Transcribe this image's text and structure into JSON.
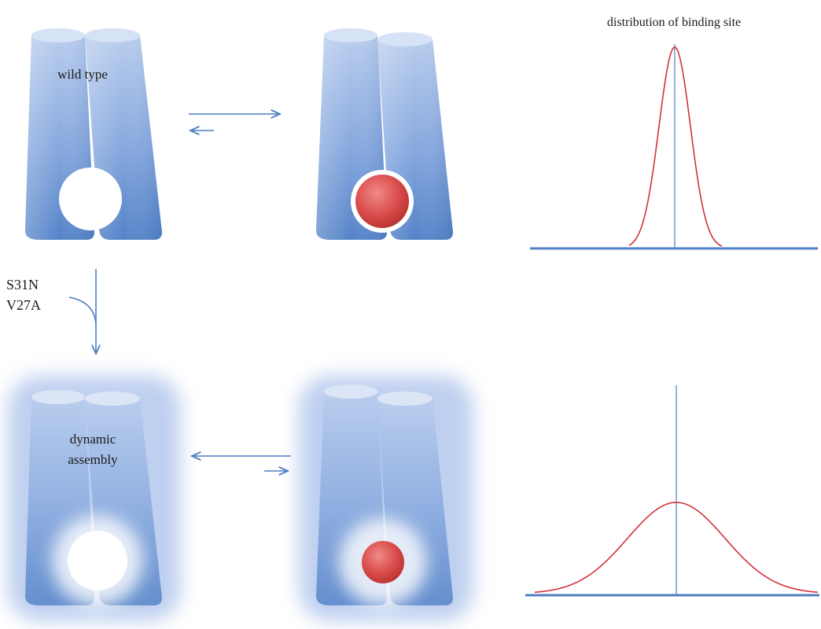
{
  "labels": {
    "wild_type": "wild type",
    "mutation_1": "S31N",
    "mutation_2": "V27A",
    "dynamic_line1": "dynamic",
    "dynamic_line2": "assembly",
    "distribution_title": "distribution of binding site"
  },
  "colors": {
    "channel": "#7b9fd8",
    "channel_dark": "#4a78c0",
    "arrow": "#4f7fc1",
    "curve": "#d0323a",
    "drug": "#d94b4b",
    "axis": "#4f7fc1"
  },
  "chart_data": [
    {
      "type": "line",
      "title": "distribution of binding site",
      "series": [
        {
          "shape": "gaussian",
          "relative_width": "narrow",
          "relative_peak": 1.0
        }
      ],
      "grid": false
    },
    {
      "type": "line",
      "title": "",
      "series": [
        {
          "shape": "gaussian",
          "relative_width": "wide",
          "relative_peak": 0.45
        }
      ],
      "grid": false
    }
  ]
}
